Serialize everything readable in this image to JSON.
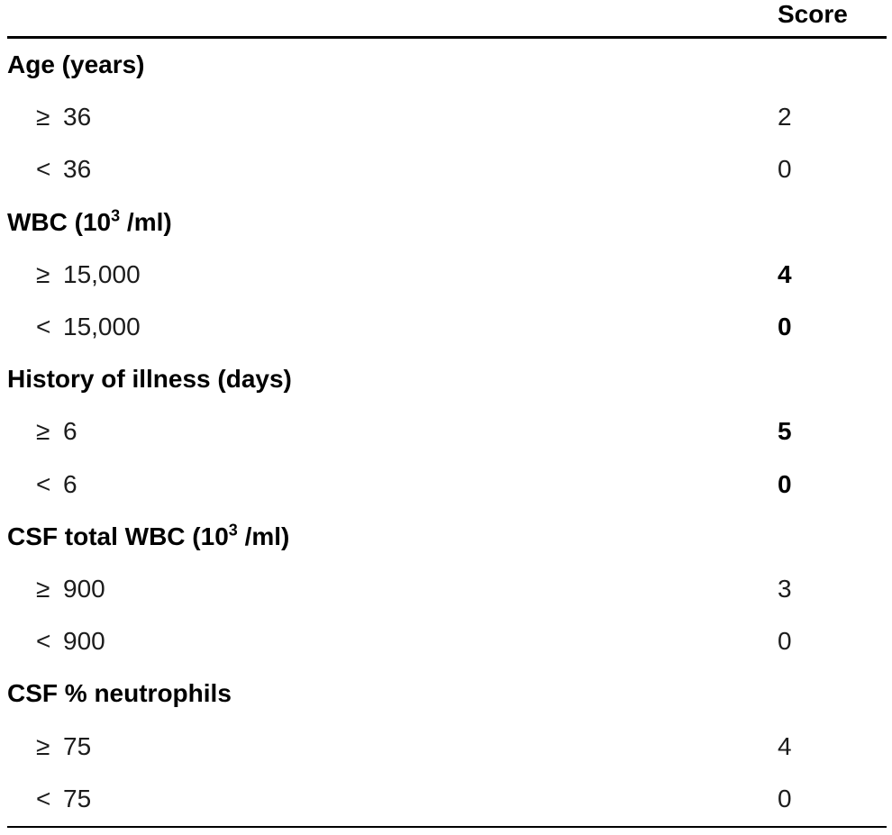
{
  "table": {
    "score_header": "Score",
    "sections": [
      {
        "title_pre": "Age (years)",
        "title_sup": "",
        "title_post": "",
        "rows": [
          {
            "op": "≥",
            "value": "36",
            "score": "2",
            "score_bold": false
          },
          {
            "op": "<",
            "value": "36",
            "score": "0",
            "score_bold": false
          }
        ]
      },
      {
        "title_pre": "WBC (10",
        "title_sup": "3",
        "title_post": " /ml)",
        "rows": [
          {
            "op": "≥",
            "value": "15,000",
            "score": "4",
            "score_bold": true
          },
          {
            "op": "<",
            "value": "15,000",
            "score": "0",
            "score_bold": true
          }
        ]
      },
      {
        "title_pre": "History of illness (days)",
        "title_sup": "",
        "title_post": "",
        "rows": [
          {
            "op": "≥",
            "value": "6",
            "score": "5",
            "score_bold": true
          },
          {
            "op": "<",
            "value": "6",
            "score": "0",
            "score_bold": true
          }
        ]
      },
      {
        "title_pre": "CSF total WBC (10",
        "title_sup": "3",
        "title_post": " /ml)",
        "rows": [
          {
            "op": "≥",
            "value": "900",
            "score": "3",
            "score_bold": false
          },
          {
            "op": "<",
            "value": "900",
            "score": "0",
            "score_bold": false
          }
        ]
      },
      {
        "title_pre": "CSF % neutrophils",
        "title_sup": "",
        "title_post": "",
        "rows": [
          {
            "op": "≥",
            "value": "75",
            "score": "4",
            "score_bold": false
          },
          {
            "op": "<",
            "value": "75",
            "score": "0",
            "score_bold": false
          }
        ]
      }
    ]
  }
}
